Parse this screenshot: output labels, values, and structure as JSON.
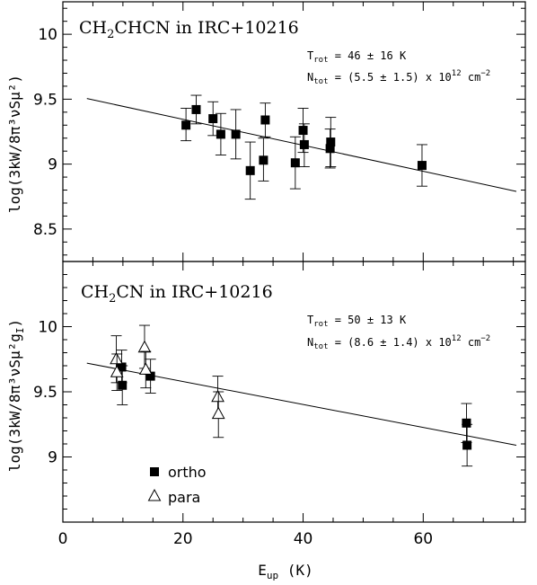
{
  "figure": {
    "xlabel": "E",
    "xlabel_sub": "up",
    "xlabel_unit": " (K)"
  },
  "chart_data": [
    {
      "type": "scatter",
      "title_main": "CH",
      "title_sub": "2",
      "title_rest": "CHCN in IRC+10216",
      "ylabel": "log(3kW/8π³νSμ²)",
      "annotation": {
        "trot_label": "T",
        "trot_sub": "rot",
        "trot_value": " = 46 ± 16 K",
        "ntot_label": "N",
        "ntot_sub": "tot",
        "ntot_value": " = (5.5 ± 1.5) x 10",
        "ntot_exp": "12",
        "ntot_unit": " cm",
        "ntot_unit_exp": "−2"
      },
      "xlim": [
        0,
        77
      ],
      "ylim": [
        8.25,
        10.25
      ],
      "xticks": [
        0,
        20,
        40,
        60
      ],
      "yticks": [
        8.5,
        9,
        9.5,
        10
      ],
      "ytick_labels": [
        "8.5",
        "9",
        "9.5",
        "10"
      ],
      "fit": {
        "x": [
          4,
          75.5
        ],
        "y": [
          9.505,
          8.79
        ]
      },
      "series": [
        {
          "marker": "filled-square",
          "points": [
            {
              "x": 20.5,
              "y": 9.3,
              "lo": 9.18,
              "hi": 9.43
            },
            {
              "x": 22.2,
              "y": 9.42,
              "lo": 9.31,
              "hi": 9.53
            },
            {
              "x": 25.0,
              "y": 9.35,
              "lo": 9.22,
              "hi": 9.48
            },
            {
              "x": 26.3,
              "y": 9.23,
              "lo": 9.07,
              "hi": 9.39
            },
            {
              "x": 28.8,
              "y": 9.23,
              "lo": 9.04,
              "hi": 9.42
            },
            {
              "x": 31.2,
              "y": 8.95,
              "lo": 8.73,
              "hi": 9.17
            },
            {
              "x": 33.4,
              "y": 9.03,
              "lo": 8.87,
              "hi": 9.2
            },
            {
              "x": 33.7,
              "y": 9.34,
              "lo": 9.21,
              "hi": 9.47
            },
            {
              "x": 38.7,
              "y": 9.01,
              "lo": 8.81,
              "hi": 9.21
            },
            {
              "x": 40.0,
              "y": 9.26,
              "lo": 9.09,
              "hi": 9.43
            },
            {
              "x": 40.2,
              "y": 9.15,
              "lo": 8.98,
              "hi": 9.31
            },
            {
              "x": 44.5,
              "y": 9.12,
              "lo": 8.97,
              "hi": 9.27
            },
            {
              "x": 44.6,
              "y": 9.17,
              "lo": 8.98,
              "hi": 9.36
            },
            {
              "x": 59.8,
              "y": 8.99,
              "lo": 8.83,
              "hi": 9.15
            }
          ]
        }
      ]
    },
    {
      "type": "scatter",
      "title_main": "CH",
      "title_sub": "2",
      "title_rest": "CN in IRC+10216",
      "ylabel": "log(3kW/8π³νSμ²g",
      "ylabel_sub": "I",
      "ylabel_close": ")",
      "annotation": {
        "trot_label": "T",
        "trot_sub": "rot",
        "trot_value": " = 50 ± 13 K",
        "ntot_label": "N",
        "ntot_sub": "tot",
        "ntot_value": " = (8.6 ± 1.4) x 10",
        "ntot_exp": "12",
        "ntot_unit": " cm",
        "ntot_unit_exp": "−2"
      },
      "xlim": [
        0,
        77
      ],
      "ylim": [
        8.5,
        10.5
      ],
      "xticks": [
        0,
        20,
        40,
        60
      ],
      "xtick_labels": [
        "0",
        "20",
        "40",
        "60"
      ],
      "yticks": [
        9,
        9.5,
        10
      ],
      "ytick_labels": [
        "9",
        "9.5",
        "10"
      ],
      "fit": {
        "x": [
          4,
          75.5
        ],
        "y": [
          9.72,
          9.09
        ]
      },
      "legend": {
        "position": "bottom-left",
        "ortho": "ortho",
        "para": "para"
      },
      "series": [
        {
          "name": "ortho",
          "marker": "filled-square",
          "points": [
            {
              "x": 9.8,
              "y": 9.69,
              "lo": 9.57,
              "hi": 9.82
            },
            {
              "x": 9.9,
              "y": 9.55,
              "lo": 9.4,
              "hi": 9.7
            },
            {
              "x": 14.6,
              "y": 9.62,
              "lo": 9.49,
              "hi": 9.75
            },
            {
              "x": 67.2,
              "y": 9.26,
              "lo": 9.11,
              "hi": 9.41
            },
            {
              "x": 67.3,
              "y": 9.09,
              "lo": 8.93,
              "hi": 9.25
            }
          ]
        },
        {
          "name": "para",
          "marker": "open-triangle",
          "points": [
            {
              "x": 8.9,
              "y": 9.75,
              "lo": 9.57,
              "hi": 9.93
            },
            {
              "x": 9.0,
              "y": 9.65,
              "lo": 9.51,
              "hi": 9.79
            },
            {
              "x": 13.6,
              "y": 9.84,
              "lo": 9.68,
              "hi": 10.01
            },
            {
              "x": 13.8,
              "y": 9.67,
              "lo": 9.53,
              "hi": 9.81
            },
            {
              "x": 25.8,
              "y": 9.46,
              "lo": 9.3,
              "hi": 9.62
            },
            {
              "x": 25.9,
              "y": 9.33,
              "lo": 9.15,
              "hi": 9.5
            }
          ]
        }
      ]
    }
  ]
}
